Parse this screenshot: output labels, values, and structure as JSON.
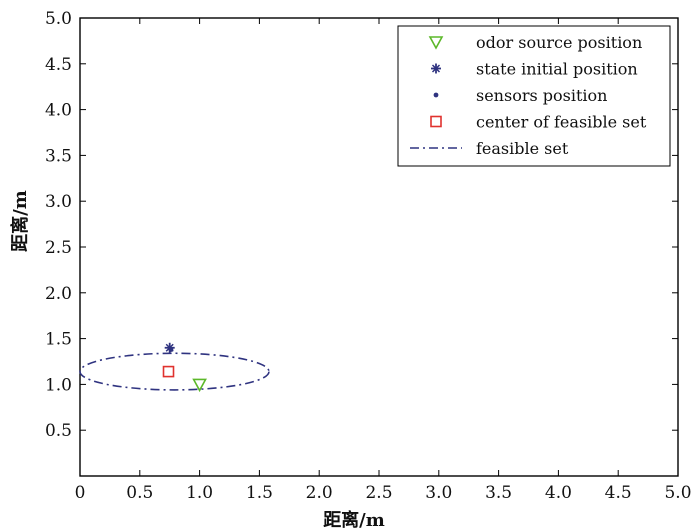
{
  "chart_data": {
    "type": "scatter",
    "title": "",
    "xlabel": "距离/m",
    "ylabel": "距离/m",
    "xlim": [
      0,
      5
    ],
    "ylim": [
      0,
      5
    ],
    "xticks": [
      "0",
      "0.5",
      "1.0",
      "1.5",
      "2.0",
      "2.5",
      "3.0",
      "3.5",
      "4.0",
      "4.5",
      "5.0"
    ],
    "yticks": [
      "0.5",
      "1.0",
      "1.5",
      "2.0",
      "2.5",
      "3.0",
      "3.5",
      "4.0",
      "4.5",
      "5.0"
    ],
    "grid": false,
    "legend_position": "top-right",
    "series": [
      {
        "name": "odor source position",
        "marker": "triangle-down",
        "color": "#5cb82a",
        "points": [
          [
            1.0,
            1.0
          ]
        ]
      },
      {
        "name": "state initial position",
        "marker": "star",
        "color": "#2f3380",
        "points": [
          [
            0.75,
            1.4
          ]
        ]
      },
      {
        "name": "sensors position",
        "marker": "dot",
        "color": "#2f3380",
        "points": [
          [
            0.76,
            1.38
          ]
        ]
      },
      {
        "name": "center of feasible set",
        "marker": "square",
        "color": "#e0322e",
        "points": [
          [
            0.74,
            1.14
          ]
        ]
      },
      {
        "name": "feasible set",
        "marker": "dashdot-line",
        "color": "#2f3380",
        "ellipse": {
          "cx": 0.79,
          "cy": 1.14,
          "rx": 0.79,
          "ry": 0.2
        }
      }
    ]
  }
}
